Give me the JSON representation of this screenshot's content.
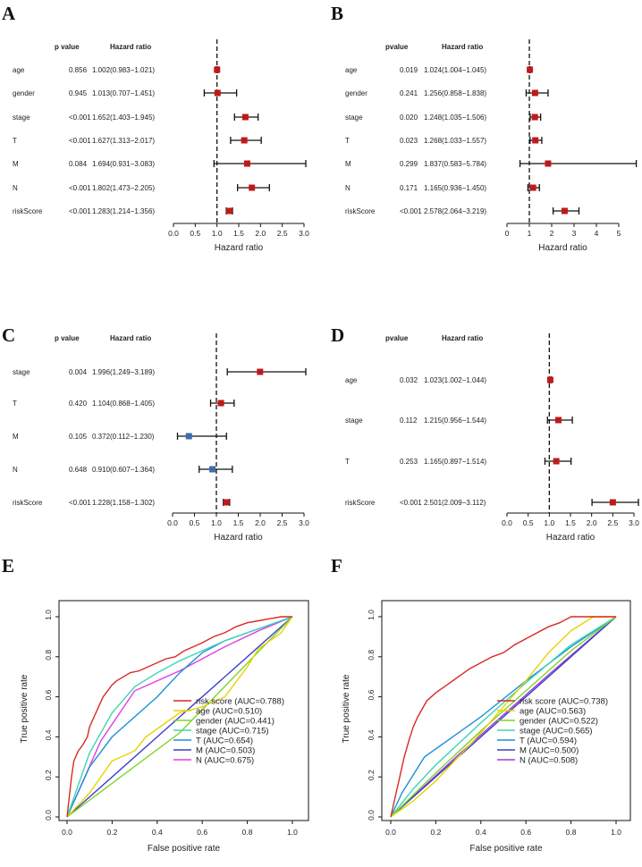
{
  "chart_data": [
    {
      "panel": "A",
      "type": "forest",
      "headers": {
        "p": "p value",
        "hr": "Hazard ratio"
      },
      "xlabel": "Hazard ratio",
      "xlim": [
        0,
        3.0
      ],
      "ticks": [
        "0.0",
        "0.5",
        "1.0",
        "1.5",
        "2.0",
        "2.5",
        "3.0"
      ],
      "tick_values": [
        0,
        0.5,
        1.0,
        1.5,
        2.0,
        2.5,
        3.0
      ],
      "reference": 1.0,
      "rows": [
        {
          "label": "age",
          "p": "0.856",
          "hr_text": "1.002(0.983−1.021)",
          "hr": 1.002,
          "lo": 0.983,
          "hi": 1.021,
          "color": "#c0191c"
        },
        {
          "label": "gender",
          "p": "0.945",
          "hr_text": "1.013(0.707−1.451)",
          "hr": 1.013,
          "lo": 0.707,
          "hi": 1.451,
          "color": "#c0191c"
        },
        {
          "label": "stage",
          "p": "<0.001",
          "hr_text": "1.652(1.403−1.945)",
          "hr": 1.652,
          "lo": 1.403,
          "hi": 1.945,
          "color": "#c0191c"
        },
        {
          "label": "T",
          "p": "<0.001",
          "hr_text": "1.627(1.313−2.017)",
          "hr": 1.627,
          "lo": 1.313,
          "hi": 2.017,
          "color": "#c0191c"
        },
        {
          "label": "M",
          "p": "0.084",
          "hr_text": "1.694(0.931−3.083)",
          "hr": 1.694,
          "lo": 0.931,
          "hi": 3.083,
          "color": "#c0191c"
        },
        {
          "label": "N",
          "p": "<0.001",
          "hr_text": "1.802(1.473−2.205)",
          "hr": 1.802,
          "lo": 1.473,
          "hi": 2.205,
          "color": "#c0191c"
        },
        {
          "label": "riskScore",
          "p": "<0.001",
          "hr_text": "1.283(1.214−1.356)",
          "hr": 1.283,
          "lo": 1.214,
          "hi": 1.356,
          "color": "#c0191c"
        }
      ]
    },
    {
      "panel": "B",
      "type": "forest",
      "headers": {
        "p": "pvalue",
        "hr": "Hazard ratio"
      },
      "xlabel": "Hazard ratio",
      "xlim": [
        0,
        5
      ],
      "ticks": [
        "0",
        "1",
        "2",
        "3",
        "4",
        "5"
      ],
      "tick_values": [
        0,
        1,
        2,
        3,
        4,
        5
      ],
      "reference": 1.0,
      "rows": [
        {
          "label": "age",
          "p": "0.019",
          "hr_text": "1.024(1.004−1.045)",
          "hr": 1.024,
          "lo": 1.004,
          "hi": 1.045,
          "color": "#c0191c"
        },
        {
          "label": "gender",
          "p": "0.241",
          "hr_text": "1.256(0.858−1.838)",
          "hr": 1.256,
          "lo": 0.858,
          "hi": 1.838,
          "color": "#c0191c"
        },
        {
          "label": "stage",
          "p": "0.020",
          "hr_text": "1.248(1.035−1.506)",
          "hr": 1.248,
          "lo": 1.035,
          "hi": 1.506,
          "color": "#c0191c"
        },
        {
          "label": "T",
          "p": "0.023",
          "hr_text": "1.268(1.033−1.557)",
          "hr": 1.268,
          "lo": 1.033,
          "hi": 1.557,
          "color": "#c0191c"
        },
        {
          "label": "M",
          "p": "0.299",
          "hr_text": "1.837(0.583−5.784)",
          "hr": 1.837,
          "lo": 0.583,
          "hi": 5.784,
          "color": "#c0191c"
        },
        {
          "label": "N",
          "p": "0.171",
          "hr_text": "1.165(0.936−1.450)",
          "hr": 1.165,
          "lo": 0.936,
          "hi": 1.45,
          "color": "#c0191c"
        },
        {
          "label": "riskScore",
          "p": "<0.001",
          "hr_text": "2.578(2.064−3.219)",
          "hr": 2.578,
          "lo": 2.064,
          "hi": 3.219,
          "color": "#c0191c"
        }
      ]
    },
    {
      "panel": "C",
      "type": "forest",
      "headers": {
        "p": "p value",
        "hr": "Hazard ratio"
      },
      "xlabel": "Hazard ratio",
      "xlim": [
        0,
        3.0
      ],
      "ticks": [
        "0.0",
        "0.5",
        "1.0",
        "1.5",
        "2.0",
        "2.5",
        "3.0"
      ],
      "tick_values": [
        0,
        0.5,
        1.0,
        1.5,
        2.0,
        2.5,
        3.0
      ],
      "reference": 1.0,
      "rows": [
        {
          "label": "stage",
          "p": "0.004",
          "hr_text": "1.996(1.249−3.189)",
          "hr": 1.996,
          "lo": 1.249,
          "hi": 3.189,
          "color": "#c0191c"
        },
        {
          "label": "T",
          "p": "0.420",
          "hr_text": "1.104(0.868−1.405)",
          "hr": 1.104,
          "lo": 0.868,
          "hi": 1.405,
          "color": "#c0191c"
        },
        {
          "label": "M",
          "p": "0.105",
          "hr_text": "0.372(0.112−1.230)",
          "hr": 0.372,
          "lo": 0.112,
          "hi": 1.23,
          "color": "#3b6ea5"
        },
        {
          "label": "N",
          "p": "0.648",
          "hr_text": "0.910(0.607−1.364)",
          "hr": 0.91,
          "lo": 0.607,
          "hi": 1.364,
          "color": "#3b6ea5"
        },
        {
          "label": "riskScore",
          "p": "<0.001",
          "hr_text": "1.228(1.158−1.302)",
          "hr": 1.228,
          "lo": 1.158,
          "hi": 1.302,
          "color": "#c0191c"
        }
      ]
    },
    {
      "panel": "D",
      "type": "forest",
      "headers": {
        "p": "pvalue",
        "hr": "Hazard ratio"
      },
      "xlabel": "Hazard ratio",
      "xlim": [
        0,
        3.0
      ],
      "ticks": [
        "0.0",
        "0.5",
        "1.0",
        "1.5",
        "2.0",
        "2.5",
        "3.0"
      ],
      "tick_values": [
        0,
        0.5,
        1.0,
        1.5,
        2.0,
        2.5,
        3.0
      ],
      "reference": 1.0,
      "rows": [
        {
          "label": "age",
          "p": "0.032",
          "hr_text": "1.023(1.002−1.044)",
          "hr": 1.023,
          "lo": 1.002,
          "hi": 1.044,
          "color": "#c0191c"
        },
        {
          "label": "stage",
          "p": "0.112",
          "hr_text": "1.215(0.956−1.544)",
          "hr": 1.215,
          "lo": 0.956,
          "hi": 1.544,
          "color": "#c0191c"
        },
        {
          "label": "T",
          "p": "0.253",
          "hr_text": "1.165(0.897−1.514)",
          "hr": 1.165,
          "lo": 0.897,
          "hi": 1.514,
          "color": "#c0191c"
        },
        {
          "label": "riskScore",
          "p": "<0.001",
          "hr_text": "2.501(2.009−3.112)",
          "hr": 2.501,
          "lo": 2.009,
          "hi": 3.112,
          "color": "#c0191c"
        }
      ]
    },
    {
      "panel": "E",
      "type": "line",
      "title": "",
      "xlabel": "False positive rate",
      "ylabel": "True positive rate",
      "xlim": [
        0,
        1
      ],
      "ylim": [
        0,
        1
      ],
      "ticks": [
        "0.0",
        "0.2",
        "0.4",
        "0.6",
        "0.8",
        "1.0"
      ],
      "tick_values": [
        0,
        0.2,
        0.4,
        0.6,
        0.8,
        1.0
      ],
      "series": [
        {
          "name": "risk score (AUC=0.788)",
          "color": "#d62a25",
          "x": [
            0,
            0.01,
            0.02,
            0.03,
            0.05,
            0.07,
            0.09,
            0.1,
            0.12,
            0.14,
            0.16,
            0.18,
            0.2,
            0.22,
            0.25,
            0.28,
            0.32,
            0.36,
            0.4,
            0.44,
            0.48,
            0.52,
            0.56,
            0.6,
            0.65,
            0.7,
            0.75,
            0.8,
            0.85,
            0.9,
            0.95,
            1.0
          ],
          "y": [
            0,
            0.1,
            0.2,
            0.28,
            0.33,
            0.36,
            0.4,
            0.45,
            0.5,
            0.55,
            0.6,
            0.63,
            0.66,
            0.68,
            0.7,
            0.72,
            0.73,
            0.75,
            0.77,
            0.79,
            0.8,
            0.83,
            0.85,
            0.87,
            0.9,
            0.92,
            0.95,
            0.97,
            0.98,
            0.99,
            1.0,
            1.0
          ]
        },
        {
          "name": "age (AUC=0.510)",
          "color": "#e8d200",
          "x": [
            0,
            0.1,
            0.2,
            0.3,
            0.35,
            0.45,
            0.5,
            0.6,
            0.7,
            0.8,
            0.85,
            0.9,
            0.95,
            1.0
          ],
          "y": [
            0,
            0.12,
            0.28,
            0.33,
            0.4,
            0.48,
            0.52,
            0.55,
            0.6,
            0.75,
            0.84,
            0.88,
            0.92,
            1.0
          ]
        },
        {
          "name": "gender (AUC=0.441)",
          "color": "#7fd42a",
          "x": [
            0,
            0.5,
            1.0
          ],
          "y": [
            0,
            0.42,
            1.0
          ]
        },
        {
          "name": "stage (AUC=0.715)",
          "color": "#3cd6b4",
          "x": [
            0,
            0.1,
            0.2,
            0.3,
            0.4,
            0.5,
            0.6,
            0.7,
            0.8,
            0.9,
            1.0
          ],
          "y": [
            0,
            0.32,
            0.52,
            0.65,
            0.72,
            0.78,
            0.83,
            0.88,
            0.92,
            0.96,
            1.0
          ]
        },
        {
          "name": "T (AUC=0.654)",
          "color": "#1f8fd6",
          "x": [
            0,
            0.1,
            0.2,
            0.4,
            0.5,
            0.6,
            0.7,
            0.8,
            0.9,
            1.0
          ],
          "y": [
            0,
            0.25,
            0.4,
            0.6,
            0.72,
            0.82,
            0.88,
            0.92,
            0.96,
            1.0
          ]
        },
        {
          "name": "M (AUC=0.503)",
          "color": "#3a3fcc",
          "x": [
            0,
            1.0
          ],
          "y": [
            0,
            1.0
          ]
        },
        {
          "name": "N (AUC=0.675)",
          "color": "#e03fe0",
          "x": [
            0,
            0.15,
            0.3,
            0.5,
            0.7,
            0.85,
            1.0
          ],
          "y": [
            0,
            0.38,
            0.63,
            0.73,
            0.85,
            0.93,
            1.0
          ]
        }
      ]
    },
    {
      "panel": "F",
      "type": "line",
      "title": "",
      "xlabel": "False positive rate",
      "ylabel": "True positive rate",
      "xlim": [
        0,
        1
      ],
      "ylim": [
        0,
        1
      ],
      "ticks": [
        "0.0",
        "0.2",
        "0.4",
        "0.6",
        "0.8",
        "1.0"
      ],
      "tick_values": [
        0,
        0.2,
        0.4,
        0.6,
        0.8,
        1.0
      ],
      "series": [
        {
          "name": "risk score (AUC=0.738)",
          "color": "#d62a25",
          "x": [
            0,
            0.02,
            0.04,
            0.06,
            0.08,
            0.1,
            0.12,
            0.14,
            0.16,
            0.2,
            0.25,
            0.3,
            0.35,
            0.4,
            0.45,
            0.5,
            0.55,
            0.6,
            0.65,
            0.7,
            0.75,
            0.8,
            0.85,
            0.9,
            0.95,
            1.0
          ],
          "y": [
            0,
            0.1,
            0.2,
            0.3,
            0.38,
            0.45,
            0.5,
            0.54,
            0.58,
            0.62,
            0.66,
            0.7,
            0.74,
            0.77,
            0.8,
            0.82,
            0.86,
            0.89,
            0.92,
            0.95,
            0.97,
            1.0,
            1.0,
            1.0,
            1.0,
            1.0
          ]
        },
        {
          "name": "age (AUC=0.563)",
          "color": "#e8d200",
          "x": [
            0,
            0.1,
            0.2,
            0.3,
            0.4,
            0.5,
            0.6,
            0.7,
            0.8,
            0.9,
            1.0
          ],
          "y": [
            0,
            0.08,
            0.18,
            0.3,
            0.42,
            0.55,
            0.68,
            0.82,
            0.93,
            1.0,
            1.0
          ]
        },
        {
          "name": "gender (AUC=0.522)",
          "color": "#7fd42a",
          "x": [
            0,
            0.2,
            0.4,
            0.6,
            0.8,
            1.0
          ],
          "y": [
            0,
            0.22,
            0.43,
            0.63,
            0.83,
            1.0
          ]
        },
        {
          "name": "stage (AUC=0.565)",
          "color": "#3cd6b4",
          "x": [
            0,
            0.1,
            0.2,
            0.4,
            0.6,
            0.8,
            1.0
          ],
          "y": [
            0,
            0.14,
            0.26,
            0.47,
            0.67,
            0.86,
            1.0
          ]
        },
        {
          "name": "T (AUC=0.594)",
          "color": "#1f8fd6",
          "x": [
            0,
            0.05,
            0.15,
            0.4,
            0.6,
            0.8,
            1.0
          ],
          "y": [
            0,
            0.12,
            0.3,
            0.5,
            0.68,
            0.85,
            1.0
          ]
        },
        {
          "name": "M (AUC=0.500)",
          "color": "#3a3fcc",
          "x": [
            0,
            1.0
          ],
          "y": [
            0,
            1.0
          ]
        },
        {
          "name": "N (AUC=0.508)",
          "color": "#a23ad6",
          "x": [
            0,
            0.3,
            0.7,
            1.0
          ],
          "y": [
            0,
            0.31,
            0.71,
            1.0
          ]
        }
      ]
    }
  ]
}
